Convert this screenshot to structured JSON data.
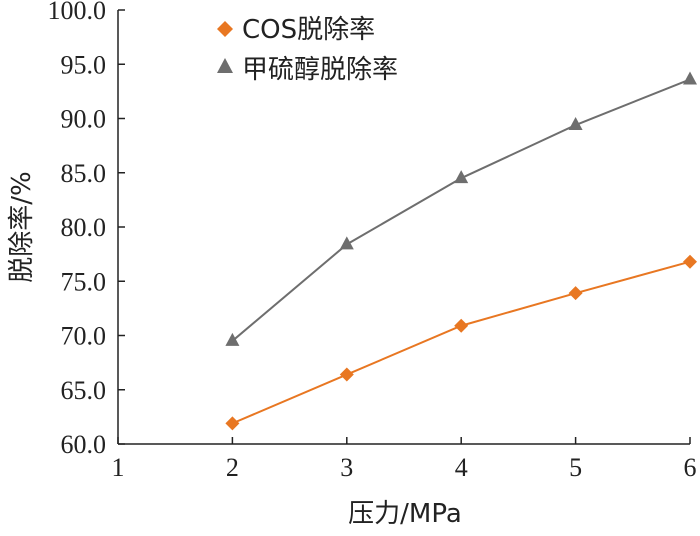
{
  "chart_data": {
    "type": "line",
    "x": [
      2,
      3,
      4,
      5,
      6
    ],
    "xlabel": "压力/MPa",
    "ylabel": "脱除率/%",
    "xlim": [
      1,
      6
    ],
    "ylim": [
      60.0,
      100.0
    ],
    "xticks": [
      "1",
      "2",
      "3",
      "4",
      "5",
      "6"
    ],
    "yticks": [
      "60.0",
      "65.0",
      "70.0",
      "75.0",
      "80.0",
      "85.0",
      "90.0",
      "95.0",
      "100.0"
    ],
    "grid": false,
    "legend_position": "top-left",
    "series": [
      {
        "name": "COS脱除率",
        "marker": "diamond",
        "color": "#e87722",
        "values": [
          61.9,
          66.4,
          70.9,
          73.9,
          76.8
        ]
      },
      {
        "name": "甲硫醇脱除率",
        "marker": "triangle",
        "color": "#6e6e6e",
        "values": [
          69.5,
          78.4,
          84.5,
          89.4,
          93.6
        ]
      }
    ]
  }
}
